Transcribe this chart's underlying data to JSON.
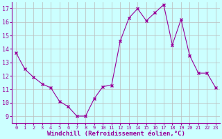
{
  "x": [
    0,
    1,
    2,
    3,
    4,
    5,
    6,
    7,
    8,
    9,
    10,
    11,
    12,
    13,
    14,
    15,
    16,
    17,
    18,
    19,
    20,
    21,
    22,
    23
  ],
  "y": [
    13.7,
    12.5,
    11.9,
    11.4,
    11.1,
    10.1,
    9.7,
    9.0,
    9.0,
    10.3,
    11.2,
    11.3,
    14.6,
    16.3,
    17.0,
    16.1,
    16.7,
    17.3,
    14.3,
    16.2,
    13.5,
    12.2,
    12.2,
    11.1
  ],
  "xlabel": "Windchill (Refroidissement éolien,°C)",
  "ylim": [
    8.5,
    17.5
  ],
  "yticks": [
    9,
    10,
    11,
    12,
    13,
    14,
    15,
    16,
    17
  ],
  "xticks": [
    0,
    1,
    2,
    3,
    4,
    5,
    6,
    7,
    8,
    9,
    10,
    11,
    12,
    13,
    14,
    15,
    16,
    17,
    18,
    19,
    20,
    21,
    22,
    23
  ],
  "line_color": "#990099",
  "marker_color": "#990099",
  "bg_color": "#ccffff",
  "grid_color": "#bbbbbb",
  "tick_color": "#990099",
  "label_color": "#990099",
  "spine_color": "#990099"
}
